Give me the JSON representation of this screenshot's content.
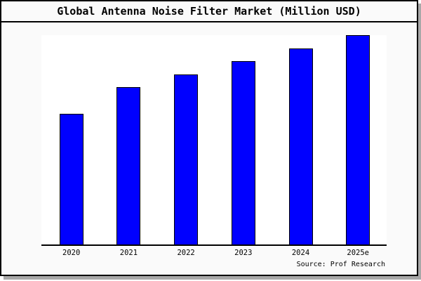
{
  "figure": {
    "title": "Global Antenna Noise Filter Market (Million USD)",
    "source": "Source: Prof Research"
  },
  "colors": {
    "bar_fill": "#0000ff",
    "bar_border": "#000000",
    "figure_background": "#fafafa",
    "plot_background": "#ffffff",
    "figure_border": "#000000",
    "shadow": "#a8a8a8"
  },
  "chart_data": {
    "type": "bar",
    "title": "Global Antenna Noise Filter Market (Million USD)",
    "categories": [
      "2020",
      "2021",
      "2022",
      "2023",
      "2024",
      "2025e"
    ],
    "values": [
      100,
      120,
      130,
      140,
      150,
      160
    ],
    "value_note": "No y-axis, tick labels, or gridlines are shown; values are estimated relative units (2020 = 100) read from bar heights.",
    "xlabel": "",
    "ylabel": "",
    "ylim": [
      0,
      161
    ],
    "grid": false,
    "legend": false,
    "source": "Source: Prof Research"
  }
}
